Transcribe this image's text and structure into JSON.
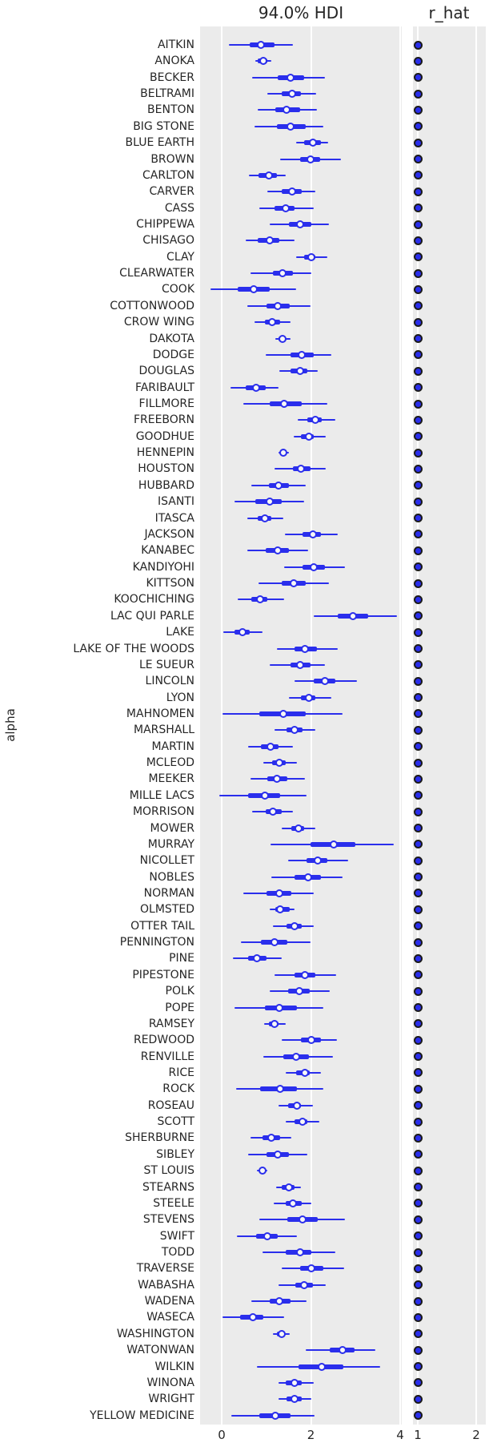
{
  "colors": {
    "accent_blue": "#2a2eec",
    "panel_background": "#ebebeb",
    "gridline": "#ffffff",
    "text": "#262626"
  },
  "chart_data": {
    "type": "forest",
    "hdi_title": "94.0% HDI",
    "rhat_title": "r_hat",
    "ylabel": "alpha",
    "grid": true,
    "alpha_axis_ticks": [
      {
        "value": 0,
        "label": "0"
      },
      {
        "value": 2,
        "label": "2"
      },
      {
        "value": 4,
        "label": "4"
      }
    ],
    "rhat_axis_ticks": [
      {
        "value": 1,
        "label": "1"
      },
      {
        "value": 2,
        "label": "2"
      }
    ],
    "alpha_xlim": [
      -0.48,
      4.04
    ],
    "rhat_xlim": [
      0.92,
      2.16
    ],
    "rows": [
      {
        "label": "AITKIN",
        "hdi": [
          0.16,
          1.59
        ],
        "iqr": [
          0.62,
          1.19
        ],
        "median": 0.88,
        "r_hat": 1.0
      },
      {
        "label": "ANOKA",
        "hdi": [
          0.75,
          1.11
        ],
        "iqr": [
          0.81,
          1.03
        ],
        "median": 0.93,
        "r_hat": 1.0
      },
      {
        "label": "BECKER",
        "hdi": [
          0.68,
          2.31
        ],
        "iqr": [
          1.25,
          1.85
        ],
        "median": 1.54,
        "r_hat": 1.0
      },
      {
        "label": "BELTRAMI",
        "hdi": [
          1.03,
          2.12
        ],
        "iqr": [
          1.34,
          1.78
        ],
        "median": 1.58,
        "r_hat": 1.0
      },
      {
        "label": "BENTON",
        "hdi": [
          0.81,
          2.13
        ],
        "iqr": [
          1.21,
          1.75
        ],
        "median": 1.46,
        "r_hat": 1.0
      },
      {
        "label": "BIG STONE",
        "hdi": [
          0.73,
          2.28
        ],
        "iqr": [
          1.24,
          1.88
        ],
        "median": 1.54,
        "r_hat": 1.0
      },
      {
        "label": "BLUE EARTH",
        "hdi": [
          1.67,
          2.39
        ],
        "iqr": [
          1.85,
          2.22
        ],
        "median": 2.04,
        "r_hat": 1.0
      },
      {
        "label": "BROWN",
        "hdi": [
          1.31,
          2.67
        ],
        "iqr": [
          1.76,
          2.21
        ],
        "median": 1.99,
        "r_hat": 1.0
      },
      {
        "label": "CARLTON",
        "hdi": [
          0.61,
          1.43
        ],
        "iqr": [
          0.83,
          1.24
        ],
        "median": 1.05,
        "r_hat": 1.0
      },
      {
        "label": "CARVER",
        "hdi": [
          1.03,
          2.09
        ],
        "iqr": [
          1.35,
          1.79
        ],
        "median": 1.57,
        "r_hat": 1.0
      },
      {
        "label": "CASS",
        "hdi": [
          0.84,
          2.06
        ],
        "iqr": [
          1.19,
          1.64
        ],
        "median": 1.43,
        "r_hat": 1.0
      },
      {
        "label": "CHIPPEWA",
        "hdi": [
          1.08,
          2.4
        ],
        "iqr": [
          1.51,
          2.01
        ],
        "median": 1.76,
        "r_hat": 1.0
      },
      {
        "label": "CHISAGO",
        "hdi": [
          0.54,
          1.64
        ],
        "iqr": [
          0.8,
          1.29
        ],
        "median": 1.07,
        "r_hat": 1.0
      },
      {
        "label": "CLAY",
        "hdi": [
          1.66,
          2.37
        ],
        "iqr": [
          1.84,
          2.1
        ],
        "median": 2.01,
        "r_hat": 1.0
      },
      {
        "label": "CLEARWATER",
        "hdi": [
          0.64,
          2.01
        ],
        "iqr": [
          1.15,
          1.59
        ],
        "median": 1.37,
        "r_hat": 1.0
      },
      {
        "label": "COOK",
        "hdi": [
          -0.26,
          1.67
        ],
        "iqr": [
          0.35,
          1.07
        ],
        "median": 0.72,
        "r_hat": 1.0
      },
      {
        "label": "COTTONWOOD",
        "hdi": [
          0.57,
          1.99
        ],
        "iqr": [
          1.0,
          1.52
        ],
        "median": 1.25,
        "r_hat": 1.0
      },
      {
        "label": "CROW WING",
        "hdi": [
          0.74,
          1.54
        ],
        "iqr": [
          0.96,
          1.31
        ],
        "median": 1.13,
        "r_hat": 1.0
      },
      {
        "label": "DAKOTA",
        "hdi": [
          1.21,
          1.54
        ],
        "iqr": [
          1.28,
          1.44
        ],
        "median": 1.36,
        "r_hat": 1.0
      },
      {
        "label": "DODGE",
        "hdi": [
          0.98,
          2.45
        ],
        "iqr": [
          1.54,
          2.06
        ],
        "median": 1.8,
        "r_hat": 1.0
      },
      {
        "label": "DOUGLAS",
        "hdi": [
          1.29,
          2.16
        ],
        "iqr": [
          1.54,
          1.92
        ],
        "median": 1.75,
        "r_hat": 1.0
      },
      {
        "label": "FARIBAULT",
        "hdi": [
          0.19,
          1.28
        ],
        "iqr": [
          0.54,
          0.99
        ],
        "median": 0.77,
        "r_hat": 1.0
      },
      {
        "label": "FILLMORE",
        "hdi": [
          0.49,
          2.37
        ],
        "iqr": [
          1.07,
          1.79
        ],
        "median": 1.4,
        "r_hat": 1.0
      },
      {
        "label": "FREEBORN",
        "hdi": [
          1.7,
          2.55
        ],
        "iqr": [
          1.92,
          2.25
        ],
        "median": 2.1,
        "r_hat": 1.0
      },
      {
        "label": "GOODHUE",
        "hdi": [
          1.61,
          2.33
        ],
        "iqr": [
          1.78,
          2.07
        ],
        "median": 1.95,
        "r_hat": 1.0
      },
      {
        "label": "HENNEPIN",
        "hdi": [
          1.28,
          1.51
        ],
        "iqr": [
          1.33,
          1.44
        ],
        "median": 1.39,
        "r_hat": 1.0
      },
      {
        "label": "HOUSTON",
        "hdi": [
          1.19,
          2.33
        ],
        "iqr": [
          1.59,
          1.99
        ],
        "median": 1.78,
        "r_hat": 1.0
      },
      {
        "label": "HUBBARD",
        "hdi": [
          0.66,
          1.89
        ],
        "iqr": [
          1.05,
          1.5
        ],
        "median": 1.28,
        "r_hat": 1.0
      },
      {
        "label": "ISANTI",
        "hdi": [
          0.28,
          1.84
        ],
        "iqr": [
          0.75,
          1.35
        ],
        "median": 1.08,
        "r_hat": 1.0
      },
      {
        "label": "ITASCA",
        "hdi": [
          0.57,
          1.39
        ],
        "iqr": [
          0.8,
          1.12
        ],
        "median": 0.96,
        "r_hat": 1.0
      },
      {
        "label": "JACKSON",
        "hdi": [
          1.42,
          2.61
        ],
        "iqr": [
          1.82,
          2.22
        ],
        "median": 2.04,
        "r_hat": 1.0
      },
      {
        "label": "KANABEC",
        "hdi": [
          0.57,
          1.93
        ],
        "iqr": [
          0.99,
          1.51
        ],
        "median": 1.26,
        "r_hat": 1.0
      },
      {
        "label": "KANDIYOHI",
        "hdi": [
          1.4,
          2.76
        ],
        "iqr": [
          1.82,
          2.31
        ],
        "median": 2.07,
        "r_hat": 1.0
      },
      {
        "label": "KITTSON",
        "hdi": [
          0.83,
          2.4
        ],
        "iqr": [
          1.35,
          1.89
        ],
        "median": 1.62,
        "r_hat": 1.0
      },
      {
        "label": "KOOCHICHING",
        "hdi": [
          0.36,
          1.4
        ],
        "iqr": [
          0.66,
          1.03
        ],
        "median": 0.86,
        "r_hat": 1.0
      },
      {
        "label": "LAC QUI PARLE",
        "hdi": [
          2.06,
          3.93
        ],
        "iqr": [
          2.6,
          3.28
        ],
        "median": 2.94,
        "r_hat": 1.0
      },
      {
        "label": "LAKE",
        "hdi": [
          0.04,
          0.92
        ],
        "iqr": [
          0.28,
          0.62
        ],
        "median": 0.47,
        "r_hat": 1.0
      },
      {
        "label": "LAKE OF THE WOODS",
        "hdi": [
          1.24,
          2.6
        ],
        "iqr": [
          1.64,
          2.13
        ],
        "median": 1.87,
        "r_hat": 1.0
      },
      {
        "label": "LE SUEUR",
        "hdi": [
          1.07,
          2.31
        ],
        "iqr": [
          1.54,
          1.99
        ],
        "median": 1.75,
        "r_hat": 1.0
      },
      {
        "label": "LINCOLN",
        "hdi": [
          1.64,
          3.04
        ],
        "iqr": [
          2.06,
          2.55
        ],
        "median": 2.31,
        "r_hat": 1.0
      },
      {
        "label": "LYON",
        "hdi": [
          1.5,
          2.45
        ],
        "iqr": [
          1.78,
          2.1
        ],
        "median": 1.96,
        "r_hat": 1.0
      },
      {
        "label": "MAHNOMEN",
        "hdi": [
          0.01,
          2.71
        ],
        "iqr": [
          0.84,
          1.88
        ],
        "median": 1.38,
        "r_hat": 1.0
      },
      {
        "label": "MARSHALL",
        "hdi": [
          1.18,
          2.09
        ],
        "iqr": [
          1.46,
          1.82
        ],
        "median": 1.64,
        "r_hat": 1.0
      },
      {
        "label": "MARTIN",
        "hdi": [
          0.59,
          1.59
        ],
        "iqr": [
          0.88,
          1.27
        ],
        "median": 1.1,
        "r_hat": 1.0
      },
      {
        "label": "MCLEOD",
        "hdi": [
          0.94,
          1.68
        ],
        "iqr": [
          1.13,
          1.44
        ],
        "median": 1.29,
        "r_hat": 1.0
      },
      {
        "label": "MEEKER",
        "hdi": [
          0.64,
          1.86
        ],
        "iqr": [
          1.02,
          1.47
        ],
        "median": 1.24,
        "r_hat": 1.0
      },
      {
        "label": "MILLE LACS",
        "hdi": [
          -0.05,
          1.9
        ],
        "iqr": [
          0.59,
          1.31
        ],
        "median": 0.96,
        "r_hat": 1.0
      },
      {
        "label": "MORRISON",
        "hdi": [
          0.68,
          1.59
        ],
        "iqr": [
          0.99,
          1.34
        ],
        "median": 1.15,
        "r_hat": 1.0
      },
      {
        "label": "MOWER",
        "hdi": [
          1.35,
          2.09
        ],
        "iqr": [
          1.56,
          1.85
        ],
        "median": 1.73,
        "r_hat": 1.0
      },
      {
        "label": "MURRAY",
        "hdi": [
          1.09,
          3.86
        ],
        "iqr": [
          1.99,
          3.0
        ],
        "median": 2.52,
        "r_hat": 1.0
      },
      {
        "label": "NICOLLET",
        "hdi": [
          1.48,
          2.83
        ],
        "iqr": [
          1.9,
          2.37
        ],
        "median": 2.16,
        "r_hat": 1.0
      },
      {
        "label": "NOBLES",
        "hdi": [
          1.11,
          2.7
        ],
        "iqr": [
          1.63,
          2.22
        ],
        "median": 1.94,
        "r_hat": 1.0
      },
      {
        "label": "NORMAN",
        "hdi": [
          0.48,
          2.07
        ],
        "iqr": [
          1.0,
          1.56
        ],
        "median": 1.3,
        "r_hat": 1.0
      },
      {
        "label": "OLMSTED",
        "hdi": [
          1.07,
          1.63
        ],
        "iqr": [
          1.21,
          1.52
        ],
        "median": 1.31,
        "r_hat": 1.0
      },
      {
        "label": "OTTER TAIL",
        "hdi": [
          1.15,
          2.07
        ],
        "iqr": [
          1.46,
          1.8
        ],
        "median": 1.63,
        "r_hat": 1.0
      },
      {
        "label": "PENNINGTON",
        "hdi": [
          0.43,
          1.99
        ],
        "iqr": [
          0.88,
          1.48
        ],
        "median": 1.18,
        "r_hat": 1.0
      },
      {
        "label": "PINE",
        "hdi": [
          0.25,
          1.34
        ],
        "iqr": [
          0.59,
          1.0
        ],
        "median": 0.79,
        "r_hat": 1.0
      },
      {
        "label": "PIPESTONE",
        "hdi": [
          1.19,
          2.57
        ],
        "iqr": [
          1.64,
          2.1
        ],
        "median": 1.87,
        "r_hat": 1.0
      },
      {
        "label": "POLK",
        "hdi": [
          1.08,
          2.42
        ],
        "iqr": [
          1.49,
          1.97
        ],
        "median": 1.74,
        "r_hat": 1.0
      },
      {
        "label": "POPE",
        "hdi": [
          0.29,
          2.28
        ],
        "iqr": [
          0.96,
          1.68
        ],
        "median": 1.3,
        "r_hat": 1.0
      },
      {
        "label": "RAMSEY",
        "hdi": [
          0.95,
          1.44
        ],
        "iqr": [
          1.06,
          1.28
        ],
        "median": 1.19,
        "r_hat": 1.0
      },
      {
        "label": "REDWOOD",
        "hdi": [
          1.35,
          2.58
        ],
        "iqr": [
          1.78,
          2.22
        ],
        "median": 2.0,
        "r_hat": 1.0
      },
      {
        "label": "RENVILLE",
        "hdi": [
          0.93,
          2.49
        ],
        "iqr": [
          1.39,
          1.96
        ],
        "median": 1.66,
        "r_hat": 1.0
      },
      {
        "label": "RICE",
        "hdi": [
          1.44,
          2.22
        ],
        "iqr": [
          1.67,
          1.98
        ],
        "median": 1.87,
        "r_hat": 1.0
      },
      {
        "label": "ROCK",
        "hdi": [
          0.33,
          2.27
        ],
        "iqr": [
          0.86,
          1.68
        ],
        "median": 1.31,
        "r_hat": 1.0
      },
      {
        "label": "ROSEAU",
        "hdi": [
          1.28,
          2.04
        ],
        "iqr": [
          1.49,
          1.77
        ],
        "median": 1.68,
        "r_hat": 1.0
      },
      {
        "label": "SCOTT",
        "hdi": [
          1.43,
          2.19
        ],
        "iqr": [
          1.64,
          1.92
        ],
        "median": 1.82,
        "r_hat": 1.0
      },
      {
        "label": "SHERBURNE",
        "hdi": [
          0.64,
          1.56
        ],
        "iqr": [
          0.91,
          1.31
        ],
        "median": 1.11,
        "r_hat": 1.0
      },
      {
        "label": "SIBLEY",
        "hdi": [
          0.6,
          1.92
        ],
        "iqr": [
          1.0,
          1.51
        ],
        "median": 1.25,
        "r_hat": 1.0
      },
      {
        "label": "ST LOUIS",
        "hdi": [
          0.79,
          1.03
        ],
        "iqr": [
          0.84,
          0.96
        ],
        "median": 0.91,
        "r_hat": 1.0
      },
      {
        "label": "STEARNS",
        "hdi": [
          1.22,
          1.78
        ],
        "iqr": [
          1.35,
          1.64
        ],
        "median": 1.51,
        "r_hat": 1.0
      },
      {
        "label": "STEELE",
        "hdi": [
          1.17,
          2.01
        ],
        "iqr": [
          1.44,
          1.79
        ],
        "median": 1.6,
        "r_hat": 1.0
      },
      {
        "label": "STEVENS",
        "hdi": [
          0.84,
          2.76
        ],
        "iqr": [
          1.47,
          2.16
        ],
        "median": 1.82,
        "r_hat": 1.0
      },
      {
        "label": "SWIFT",
        "hdi": [
          0.34,
          1.69
        ],
        "iqr": [
          0.77,
          1.26
        ],
        "median": 1.02,
        "r_hat": 1.0
      },
      {
        "label": "TODD",
        "hdi": [
          0.91,
          2.55
        ],
        "iqr": [
          1.43,
          2.01
        ],
        "median": 1.75,
        "r_hat": 1.0
      },
      {
        "label": "TRAVERSE",
        "hdi": [
          1.35,
          2.74
        ],
        "iqr": [
          1.75,
          2.27
        ],
        "median": 2.01,
        "r_hat": 1.0
      },
      {
        "label": "WABASHA",
        "hdi": [
          1.27,
          2.34
        ],
        "iqr": [
          1.65,
          2.04
        ],
        "median": 1.84,
        "r_hat": 1.0
      },
      {
        "label": "WADENA",
        "hdi": [
          0.66,
          1.91
        ],
        "iqr": [
          1.07,
          1.54
        ],
        "median": 1.3,
        "r_hat": 1.0
      },
      {
        "label": "WASECA",
        "hdi": [
          0.01,
          1.4
        ],
        "iqr": [
          0.42,
          0.94
        ],
        "median": 0.7,
        "r_hat": 1.0
      },
      {
        "label": "WASHINGTON",
        "hdi": [
          1.15,
          1.52
        ],
        "iqr": [
          1.23,
          1.41
        ],
        "median": 1.35,
        "r_hat": 1.0
      },
      {
        "label": "WATONWAN",
        "hdi": [
          1.88,
          3.45
        ],
        "iqr": [
          2.42,
          2.97
        ],
        "median": 2.7,
        "r_hat": 1.0
      },
      {
        "label": "WILKIN",
        "hdi": [
          0.79,
          3.56
        ],
        "iqr": [
          1.73,
          2.73
        ],
        "median": 2.25,
        "r_hat": 1.0
      },
      {
        "label": "WINONA",
        "hdi": [
          1.27,
          2.06
        ],
        "iqr": [
          1.44,
          1.8
        ],
        "median": 1.64,
        "r_hat": 1.0
      },
      {
        "label": "WRIGHT",
        "hdi": [
          1.28,
          2.01
        ],
        "iqr": [
          1.46,
          1.79
        ],
        "median": 1.64,
        "r_hat": 1.0
      },
      {
        "label": "YELLOW MEDICINE",
        "hdi": [
          0.22,
          2.08
        ],
        "iqr": [
          0.84,
          1.54
        ],
        "median": 1.21,
        "r_hat": 1.0
      }
    ]
  }
}
